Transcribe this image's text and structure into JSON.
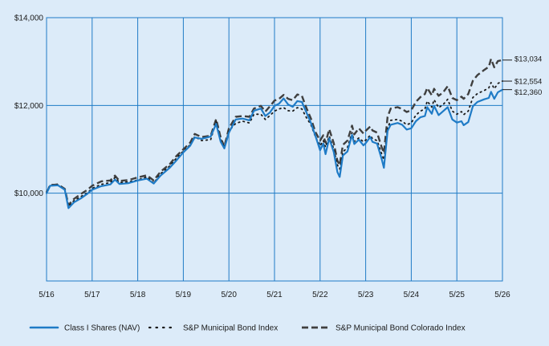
{
  "chart_data": {
    "type": "line",
    "title": "",
    "xlabel": "",
    "ylabel": "",
    "ylim": [
      8000,
      14000
    ],
    "y_ticks": [
      {
        "value": 10000,
        "label": "$10,000"
      },
      {
        "value": 12000,
        "label": "$12,000"
      },
      {
        "value": 14000,
        "label": "$14,000"
      }
    ],
    "x_ticks": [
      "5/16",
      "5/17",
      "5/18",
      "5/19",
      "5/20",
      "5/21",
      "5/22",
      "5/23",
      "5/24",
      "5/25",
      "5/26"
    ],
    "xlim": [
      0,
      10
    ],
    "grid": true,
    "legend_position": "bottom",
    "series": [
      {
        "name": "Class I Shares (NAV)",
        "color": "#1f7bc6",
        "style": "solid",
        "end_label": "$12,360",
        "points": [
          [
            0,
            10000
          ],
          [
            0.08,
            10170
          ],
          [
            0.25,
            10180
          ],
          [
            0.4,
            10080
          ],
          [
            0.48,
            9660
          ],
          [
            0.6,
            9790
          ],
          [
            0.75,
            9880
          ],
          [
            0.9,
            9990
          ],
          [
            1.0,
            10080
          ],
          [
            1.2,
            10160
          ],
          [
            1.4,
            10200
          ],
          [
            1.5,
            10310
          ],
          [
            1.6,
            10210
          ],
          [
            1.8,
            10230
          ],
          [
            2.0,
            10290
          ],
          [
            2.2,
            10330
          ],
          [
            2.35,
            10220
          ],
          [
            2.5,
            10400
          ],
          [
            2.7,
            10580
          ],
          [
            2.85,
            10750
          ],
          [
            3.0,
            10930
          ],
          [
            3.15,
            11080
          ],
          [
            3.25,
            11270
          ],
          [
            3.4,
            11240
          ],
          [
            3.6,
            11290
          ],
          [
            3.72,
            11580
          ],
          [
            3.82,
            11170
          ],
          [
            3.9,
            11020
          ],
          [
            4.0,
            11380
          ],
          [
            4.15,
            11680
          ],
          [
            4.3,
            11700
          ],
          [
            4.45,
            11660
          ],
          [
            4.55,
            11880
          ],
          [
            4.7,
            11930
          ],
          [
            4.8,
            11760
          ],
          [
            4.9,
            11840
          ],
          [
            5.0,
            11990
          ],
          [
            5.1,
            12040
          ],
          [
            5.2,
            12160
          ],
          [
            5.3,
            12020
          ],
          [
            5.4,
            11970
          ],
          [
            5.5,
            12100
          ],
          [
            5.6,
            12080
          ],
          [
            5.7,
            11840
          ],
          [
            5.8,
            11600
          ],
          [
            5.9,
            11300
          ],
          [
            6.0,
            10980
          ],
          [
            6.07,
            11130
          ],
          [
            6.12,
            10890
          ],
          [
            6.2,
            11250
          ],
          [
            6.3,
            10940
          ],
          [
            6.38,
            10480
          ],
          [
            6.43,
            10370
          ],
          [
            6.5,
            10860
          ],
          [
            6.6,
            10950
          ],
          [
            6.7,
            11330
          ],
          [
            6.75,
            11120
          ],
          [
            6.85,
            11220
          ],
          [
            6.95,
            11090
          ],
          [
            7.0,
            11140
          ],
          [
            7.1,
            11280
          ],
          [
            7.15,
            11170
          ],
          [
            7.25,
            11130
          ],
          [
            7.35,
            10780
          ],
          [
            7.4,
            10580
          ],
          [
            7.48,
            11420
          ],
          [
            7.55,
            11560
          ],
          [
            7.7,
            11600
          ],
          [
            7.8,
            11560
          ],
          [
            7.9,
            11450
          ],
          [
            8.0,
            11480
          ],
          [
            8.1,
            11640
          ],
          [
            8.2,
            11730
          ],
          [
            8.3,
            11760
          ],
          [
            8.35,
            11960
          ],
          [
            8.45,
            11810
          ],
          [
            8.5,
            11990
          ],
          [
            8.6,
            11780
          ],
          [
            8.7,
            11870
          ],
          [
            8.8,
            11960
          ],
          [
            8.9,
            11680
          ],
          [
            9.0,
            11610
          ],
          [
            9.1,
            11640
          ],
          [
            9.15,
            11550
          ],
          [
            9.25,
            11620
          ],
          [
            9.35,
            11980
          ],
          [
            9.45,
            12080
          ],
          [
            9.6,
            12140
          ],
          [
            9.7,
            12170
          ],
          [
            9.75,
            12310
          ],
          [
            9.82,
            12150
          ],
          [
            9.9,
            12300
          ],
          [
            10.0,
            12360
          ]
        ]
      },
      {
        "name": "S&P Municipal Bond Index",
        "color": "#1a1a1a",
        "style": "dotted",
        "end_label": "$12,554",
        "points": [
          [
            0,
            10030
          ],
          [
            0.08,
            10190
          ],
          [
            0.25,
            10190
          ],
          [
            0.4,
            10090
          ],
          [
            0.48,
            9700
          ],
          [
            0.6,
            9830
          ],
          [
            0.75,
            9920
          ],
          [
            0.9,
            10010
          ],
          [
            1.0,
            10110
          ],
          [
            1.2,
            10200
          ],
          [
            1.4,
            10240
          ],
          [
            1.5,
            10360
          ],
          [
            1.6,
            10240
          ],
          [
            1.8,
            10260
          ],
          [
            2.0,
            10300
          ],
          [
            2.2,
            10370
          ],
          [
            2.35,
            10230
          ],
          [
            2.5,
            10440
          ],
          [
            2.7,
            10620
          ],
          [
            2.85,
            10800
          ],
          [
            3.0,
            10960
          ],
          [
            3.15,
            11100
          ],
          [
            3.25,
            11290
          ],
          [
            3.4,
            11200
          ],
          [
            3.6,
            11220
          ],
          [
            3.72,
            11640
          ],
          [
            3.82,
            11230
          ],
          [
            3.9,
            11040
          ],
          [
            4.0,
            11420
          ],
          [
            4.15,
            11590
          ],
          [
            4.3,
            11640
          ],
          [
            4.45,
            11600
          ],
          [
            4.55,
            11800
          ],
          [
            4.7,
            11800
          ],
          [
            4.8,
            11680
          ],
          [
            4.9,
            11770
          ],
          [
            5.0,
            11870
          ],
          [
            5.1,
            11920
          ],
          [
            5.2,
            11950
          ],
          [
            5.3,
            11880
          ],
          [
            5.4,
            11870
          ],
          [
            5.5,
            11950
          ],
          [
            5.6,
            11920
          ],
          [
            5.7,
            11720
          ],
          [
            5.8,
            11560
          ],
          [
            5.9,
            11280
          ],
          [
            6.0,
            11080
          ],
          [
            6.07,
            11200
          ],
          [
            6.12,
            11050
          ],
          [
            6.2,
            11300
          ],
          [
            6.3,
            11010
          ],
          [
            6.38,
            10640
          ],
          [
            6.43,
            10550
          ],
          [
            6.5,
            10940
          ],
          [
            6.6,
            11040
          ],
          [
            6.7,
            11380
          ],
          [
            6.75,
            11180
          ],
          [
            6.85,
            11260
          ],
          [
            6.95,
            11170
          ],
          [
            7.0,
            11210
          ],
          [
            7.1,
            11320
          ],
          [
            7.15,
            11240
          ],
          [
            7.25,
            11200
          ],
          [
            7.35,
            10900
          ],
          [
            7.4,
            10760
          ],
          [
            7.48,
            11480
          ],
          [
            7.55,
            11660
          ],
          [
            7.7,
            11680
          ],
          [
            7.8,
            11640
          ],
          [
            7.9,
            11560
          ],
          [
            8.0,
            11600
          ],
          [
            8.1,
            11780
          ],
          [
            8.2,
            11870
          ],
          [
            8.3,
            11920
          ],
          [
            8.35,
            12100
          ],
          [
            8.45,
            11960
          ],
          [
            8.5,
            12130
          ],
          [
            8.6,
            11950
          ],
          [
            8.7,
            12020
          ],
          [
            8.8,
            12140
          ],
          [
            8.9,
            11870
          ],
          [
            9.0,
            11800
          ],
          [
            9.1,
            11860
          ],
          [
            9.15,
            11790
          ],
          [
            9.25,
            11870
          ],
          [
            9.35,
            12180
          ],
          [
            9.45,
            12270
          ],
          [
            9.6,
            12340
          ],
          [
            9.7,
            12400
          ],
          [
            9.75,
            12520
          ],
          [
            9.82,
            12380
          ],
          [
            9.9,
            12500
          ],
          [
            10.0,
            12554
          ]
        ]
      },
      {
        "name": "S&P Municipal Bond Colorado Index",
        "color": "#3f3f3f",
        "style": "dashed",
        "end_label": "$13,034",
        "points": [
          [
            0,
            10010
          ],
          [
            0.08,
            10180
          ],
          [
            0.25,
            10200
          ],
          [
            0.4,
            10100
          ],
          [
            0.48,
            9730
          ],
          [
            0.6,
            9870
          ],
          [
            0.75,
            9980
          ],
          [
            0.9,
            10080
          ],
          [
            1.0,
            10170
          ],
          [
            1.2,
            10270
          ],
          [
            1.4,
            10290
          ],
          [
            1.5,
            10400
          ],
          [
            1.6,
            10280
          ],
          [
            1.8,
            10300
          ],
          [
            2.0,
            10360
          ],
          [
            2.2,
            10410
          ],
          [
            2.35,
            10290
          ],
          [
            2.5,
            10490
          ],
          [
            2.7,
            10660
          ],
          [
            2.85,
            10850
          ],
          [
            3.0,
            11000
          ],
          [
            3.15,
            11150
          ],
          [
            3.25,
            11350
          ],
          [
            3.4,
            11280
          ],
          [
            3.6,
            11310
          ],
          [
            3.72,
            11690
          ],
          [
            3.82,
            11260
          ],
          [
            3.9,
            11060
          ],
          [
            4.0,
            11480
          ],
          [
            4.15,
            11740
          ],
          [
            4.3,
            11760
          ],
          [
            4.45,
            11740
          ],
          [
            4.55,
            11930
          ],
          [
            4.7,
            11990
          ],
          [
            4.8,
            11860
          ],
          [
            4.9,
            11980
          ],
          [
            5.0,
            12110
          ],
          [
            5.1,
            12150
          ],
          [
            5.2,
            12240
          ],
          [
            5.3,
            12150
          ],
          [
            5.4,
            12120
          ],
          [
            5.5,
            12250
          ],
          [
            5.6,
            12220
          ],
          [
            5.7,
            11940
          ],
          [
            5.8,
            11700
          ],
          [
            5.9,
            11390
          ],
          [
            6.0,
            11200
          ],
          [
            6.07,
            11320
          ],
          [
            6.12,
            11150
          ],
          [
            6.2,
            11460
          ],
          [
            6.3,
            11140
          ],
          [
            6.38,
            10740
          ],
          [
            6.43,
            10640
          ],
          [
            6.5,
            11100
          ],
          [
            6.6,
            11200
          ],
          [
            6.7,
            11540
          ],
          [
            6.75,
            11340
          ],
          [
            6.85,
            11480
          ],
          [
            6.95,
            11360
          ],
          [
            7.0,
            11420
          ],
          [
            7.1,
            11520
          ],
          [
            7.15,
            11430
          ],
          [
            7.25,
            11380
          ],
          [
            7.35,
            11050
          ],
          [
            7.4,
            10920
          ],
          [
            7.48,
            11740
          ],
          [
            7.55,
            11930
          ],
          [
            7.7,
            11960
          ],
          [
            7.8,
            11920
          ],
          [
            7.9,
            11850
          ],
          [
            8.0,
            11890
          ],
          [
            8.1,
            12080
          ],
          [
            8.2,
            12190
          ],
          [
            8.3,
            12260
          ],
          [
            8.35,
            12400
          ],
          [
            8.45,
            12230
          ],
          [
            8.5,
            12380
          ],
          [
            8.6,
            12220
          ],
          [
            8.7,
            12300
          ],
          [
            8.8,
            12440
          ],
          [
            8.9,
            12170
          ],
          [
            9.0,
            12120
          ],
          [
            9.1,
            12200
          ],
          [
            9.15,
            12150
          ],
          [
            9.25,
            12260
          ],
          [
            9.35,
            12560
          ],
          [
            9.45,
            12690
          ],
          [
            9.6,
            12810
          ],
          [
            9.7,
            12880
          ],
          [
            9.75,
            13060
          ],
          [
            9.82,
            12870
          ],
          [
            9.9,
            13010
          ],
          [
            10.0,
            13034
          ]
        ]
      }
    ]
  }
}
